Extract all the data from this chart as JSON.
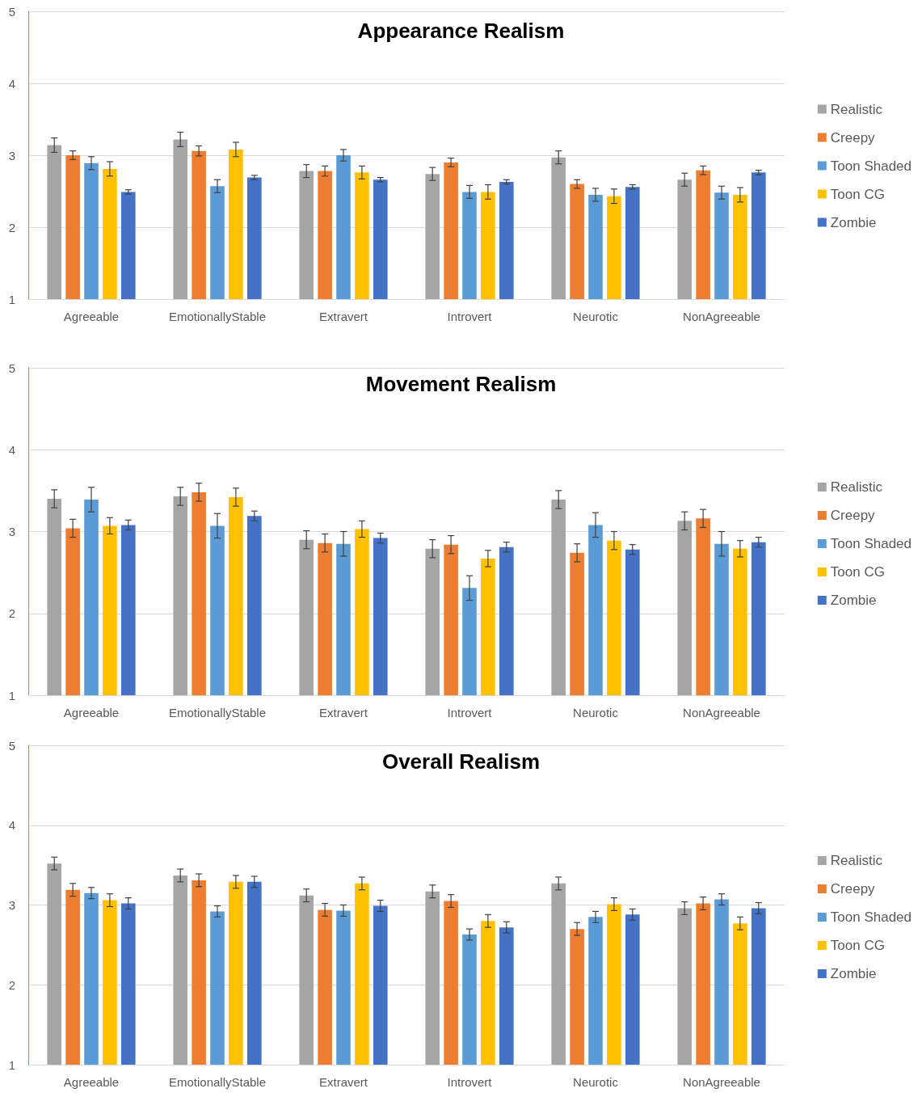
{
  "chart_data": [
    {
      "type": "bar",
      "title": "Appearance Realism",
      "categories": [
        "Agreeable",
        "EmotionallyStable",
        "Extravert",
        "Introvert",
        "Neurotic",
        "NonAgreeable"
      ],
      "ylim": [
        1,
        5
      ],
      "yticks": [
        1,
        2,
        3,
        4,
        5
      ],
      "grid": "y",
      "legend": "right",
      "series": [
        {
          "name": "Realistic",
          "color": "#a5a5a5",
          "values": [
            3.14,
            3.22,
            2.78,
            2.74,
            2.97,
            2.66
          ],
          "errors": [
            0.1,
            0.1,
            0.09,
            0.09,
            0.09,
            0.09
          ]
        },
        {
          "name": "Creepy",
          "color": "#ed7d31",
          "values": [
            3.0,
            3.06,
            2.78,
            2.9,
            2.6,
            2.79
          ],
          "errors": [
            0.06,
            0.07,
            0.07,
            0.06,
            0.06,
            0.06
          ]
        },
        {
          "name": "Toon Shaded",
          "color": "#5b9bd5",
          "values": [
            2.89,
            2.57,
            3.0,
            2.49,
            2.45,
            2.48
          ],
          "errors": [
            0.09,
            0.09,
            0.08,
            0.09,
            0.09,
            0.09
          ]
        },
        {
          "name": "Toon CG",
          "color": "#ffc000",
          "values": [
            2.81,
            3.08,
            2.76,
            2.49,
            2.43,
            2.45
          ],
          "errors": [
            0.1,
            0.1,
            0.09,
            0.1,
            0.1,
            0.1
          ]
        },
        {
          "name": "Zombie",
          "color": "#4472c4",
          "values": [
            2.49,
            2.69,
            2.66,
            2.63,
            2.56,
            2.76
          ],
          "errors": [
            0.03,
            0.03,
            0.03,
            0.03,
            0.03,
            0.03
          ]
        }
      ]
    },
    {
      "type": "bar",
      "title": "Movement Realism",
      "categories": [
        "Agreeable",
        "EmotionallyStable",
        "Extravert",
        "Introvert",
        "Neurotic",
        "NonAgreeable"
      ],
      "ylim": [
        1,
        5
      ],
      "yticks": [
        1,
        2,
        3,
        4,
        5
      ],
      "grid": "y",
      "legend": "right",
      "series": [
        {
          "name": "Realistic",
          "color": "#a5a5a5",
          "values": [
            3.4,
            3.43,
            2.9,
            2.79,
            3.39,
            3.13
          ],
          "errors": [
            0.11,
            0.11,
            0.11,
            0.11,
            0.11,
            0.11
          ]
        },
        {
          "name": "Creepy",
          "color": "#ed7d31",
          "values": [
            3.04,
            3.48,
            2.86,
            2.84,
            2.74,
            3.16
          ],
          "errors": [
            0.11,
            0.11,
            0.11,
            0.11,
            0.11,
            0.11
          ]
        },
        {
          "name": "Toon Shaded",
          "color": "#5b9bd5",
          "values": [
            3.39,
            3.07,
            2.85,
            2.31,
            3.08,
            2.85
          ],
          "errors": [
            0.15,
            0.15,
            0.15,
            0.15,
            0.15,
            0.15
          ]
        },
        {
          "name": "Toon CG",
          "color": "#ffc000",
          "values": [
            3.07,
            3.42,
            3.03,
            2.67,
            2.89,
            2.79
          ],
          "errors": [
            0.1,
            0.11,
            0.1,
            0.1,
            0.11,
            0.1
          ]
        },
        {
          "name": "Zombie",
          "color": "#4472c4",
          "values": [
            3.08,
            3.19,
            2.92,
            2.81,
            2.78,
            2.87
          ],
          "errors": [
            0.06,
            0.06,
            0.06,
            0.06,
            0.06,
            0.06
          ]
        }
      ]
    },
    {
      "type": "bar",
      "title": "Overall Realism",
      "categories": [
        "Agreeable",
        "EmotionallyStable",
        "Extravert",
        "Introvert",
        "Neurotic",
        "NonAgreeable"
      ],
      "ylim": [
        1,
        5
      ],
      "yticks": [
        1,
        2,
        3,
        4,
        5
      ],
      "grid": "y",
      "legend": "right",
      "series": [
        {
          "name": "Realistic",
          "color": "#a5a5a5",
          "values": [
            3.52,
            3.37,
            3.12,
            3.17,
            3.27,
            2.96
          ],
          "errors": [
            0.08,
            0.08,
            0.08,
            0.08,
            0.08,
            0.08
          ]
        },
        {
          "name": "Creepy",
          "color": "#ed7d31",
          "values": [
            3.19,
            3.31,
            2.94,
            3.05,
            2.7,
            3.02
          ],
          "errors": [
            0.08,
            0.08,
            0.08,
            0.08,
            0.08,
            0.08
          ]
        },
        {
          "name": "Toon Shaded",
          "color": "#5b9bd5",
          "values": [
            3.15,
            2.92,
            2.93,
            2.63,
            2.85,
            3.07
          ],
          "errors": [
            0.07,
            0.07,
            0.07,
            0.07,
            0.07,
            0.07
          ]
        },
        {
          "name": "Toon CG",
          "color": "#ffc000",
          "values": [
            3.06,
            3.29,
            3.27,
            2.8,
            3.01,
            2.77
          ],
          "errors": [
            0.08,
            0.08,
            0.08,
            0.08,
            0.08,
            0.08
          ]
        },
        {
          "name": "Zombie",
          "color": "#4472c4",
          "values": [
            3.02,
            3.29,
            2.99,
            2.72,
            2.88,
            2.96
          ],
          "errors": [
            0.07,
            0.07,
            0.07,
            0.07,
            0.07,
            0.07
          ]
        }
      ]
    }
  ]
}
